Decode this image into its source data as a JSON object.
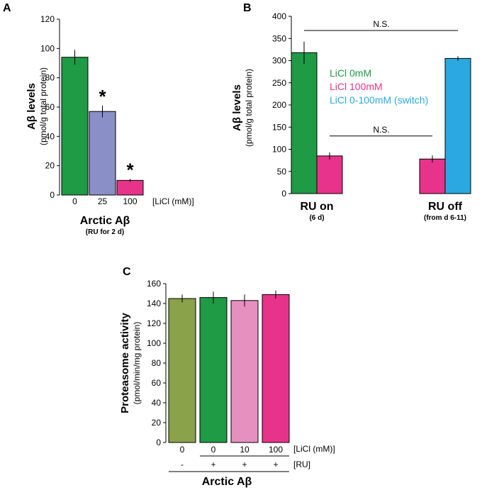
{
  "chart_data": [
    {
      "panel": "A",
      "type": "bar",
      "ylabel": "Aβ levels",
      "ylabel_sub": "(pmol/g total protein)",
      "ylim": [
        0,
        120
      ],
      "yticks": [
        0,
        20,
        40,
        60,
        80,
        100,
        120
      ],
      "categories": [
        "0",
        "25",
        "100"
      ],
      "values": [
        94,
        57,
        10
      ],
      "errors": [
        5,
        4,
        1
      ],
      "colors": [
        "#1f9a45",
        "#8a8fc8",
        "#e8338a"
      ],
      "significance": [
        "",
        "*",
        "*"
      ],
      "x_unit_label": "[LiCl (mM)]",
      "group_label": "Arctic Aβ",
      "group_sublabel": "(RU for 2 d)"
    },
    {
      "panel": "B",
      "type": "bar",
      "ylabel": "Aβ levels",
      "ylabel_sub": "(pmol/g total protein)",
      "ylim": [
        0,
        400
      ],
      "yticks": [
        0,
        50,
        100,
        150,
        200,
        250,
        300,
        350,
        400
      ],
      "groups": [
        {
          "label": "RU on",
          "sublabel": "(6 d)"
        },
        {
          "label": "RU off",
          "sublabel": "(from d 6-11)"
        }
      ],
      "bars": [
        {
          "group": 0,
          "series": "LiCl 0mM",
          "value": 318,
          "error": 25,
          "color": "#1f9a45"
        },
        {
          "group": 0,
          "series": "LiCl 100mM",
          "value": 85,
          "error": 8,
          "color": "#e8338a"
        },
        {
          "group": 1,
          "series": "LiCl 100mM",
          "value": 78,
          "error": 8,
          "color": "#e8338a"
        },
        {
          "group": 1,
          "series": "LiCl 0-100mM (switch)",
          "value": 305,
          "error": 5,
          "color": "#2ba8e0"
        }
      ],
      "legend": [
        {
          "label": "LiCl 0mM",
          "color": "#1f9a45"
        },
        {
          "label": "LiCl 100mM",
          "color": "#e8338a"
        },
        {
          "label": "LiCl 0-100mM (switch)",
          "color": "#2ba8e0"
        }
      ],
      "annotations": [
        {
          "text": "N.S.",
          "level": 368
        },
        {
          "text": "N.S.",
          "level": 130
        }
      ]
    },
    {
      "panel": "C",
      "type": "bar",
      "ylabel": "Proteasome activity",
      "ylabel_sub": "(pmol/min/mg protein)",
      "ylim": [
        0,
        160
      ],
      "yticks": [
        0,
        20,
        40,
        60,
        80,
        100,
        120,
        140,
        160
      ],
      "categories": [
        "0",
        "0",
        "10",
        "100"
      ],
      "ru": [
        "-",
        "+",
        "+",
        "+"
      ],
      "values": [
        145,
        146,
        143,
        149
      ],
      "errors": [
        4,
        6,
        6,
        4
      ],
      "colors": [
        "#8aa24a",
        "#1f9a45",
        "#e690c0",
        "#e8338a"
      ],
      "x_unit_label": "[LiCl (mM)]",
      "ru_label": "[RU]",
      "group_label": "Arctic Aβ"
    }
  ]
}
